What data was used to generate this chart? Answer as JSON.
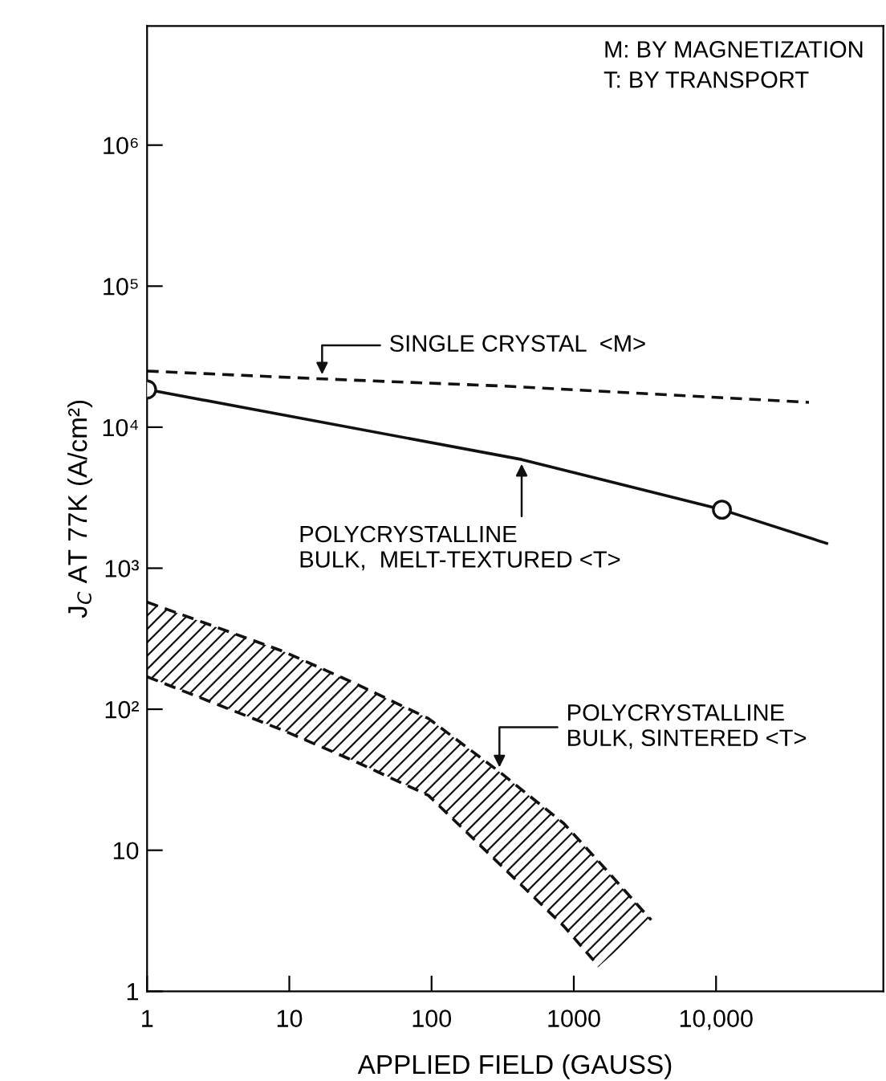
{
  "chart_data": {
    "type": "line",
    "xlabel": "APPLIED FIELD (GAUSS)",
    "ylabel": "J$_{C}$ AT 77K (A/cm²)",
    "log": "xy",
    "grid": false,
    "legend": false,
    "xlim": [
      1,
      150000
    ],
    "xticks": [
      1,
      10,
      100,
      1000,
      {
        "value": 10000,
        "label": "10,000"
      }
    ],
    "ylim": [
      1,
      7000000
    ],
    "yticks": [
      1,
      10,
      {
        "value": 100,
        "label": "10²"
      },
      {
        "value": 1000,
        "label": "10³"
      },
      {
        "value": 10000,
        "label": "10⁴"
      },
      {
        "value": 100000,
        "label": "10⁵"
      },
      {
        "value": 1000000,
        "label": "10⁶"
      }
    ],
    "series": [
      {
        "color": "#111111",
        "line_style": "dashed",
        "marker": "none",
        "x": [
          1,
          17,
          350,
          45000
        ],
        "values": [
          25000,
          22000,
          19500,
          15000
        ]
      },
      {
        "color": "#111111",
        "line_style": "solid",
        "marker": "none",
        "x": [
          1,
          430,
          11000,
          60000
        ],
        "values": [
          18500,
          5900,
          2600,
          1500
        ]
      },
      {
        "type": "scatter",
        "color": "#111111",
        "marker": "circle",
        "x": [
          1,
          11000
        ],
        "values": [
          18500,
          2600
        ]
      },
      {
        "type": "line",
        "color": "#111111",
        "line_style": "dashed",
        "marker": "none",
        "x": [
          1,
          9,
          30,
          95,
          300,
          850,
          1500,
          3500
        ],
        "values": [
          575,
          258,
          150,
          86,
          36,
          15.5,
          8.3,
          3.2
        ]
      },
      {
        "type": "line",
        "color": "#111111",
        "line_style": "dashed",
        "marker": "none",
        "x": [
          1,
          9,
          30,
          95,
          300,
          850,
          1500
        ],
        "values": [
          170,
          71,
          42,
          24.5,
          8,
          2.9,
          1.5
        ]
      }
    ],
    "annotations": [
      {
        "text": "SINGLE CRYSTAL  <M>",
        "x": 17,
        "y": 22000
      },
      {
        "text": "POLYCRYSTALLINE\nBULK,  MELT-TEXTURED <T>",
        "x": 430,
        "y": 5900
      },
      {
        "text": "POLYCRYSTALLINE\nBULK, SINTERED <T>",
        "x": 300,
        "y": 36
      },
      "M: BY MAGNETIZATION\nT: BY TRANSPORT"
    ]
  }
}
